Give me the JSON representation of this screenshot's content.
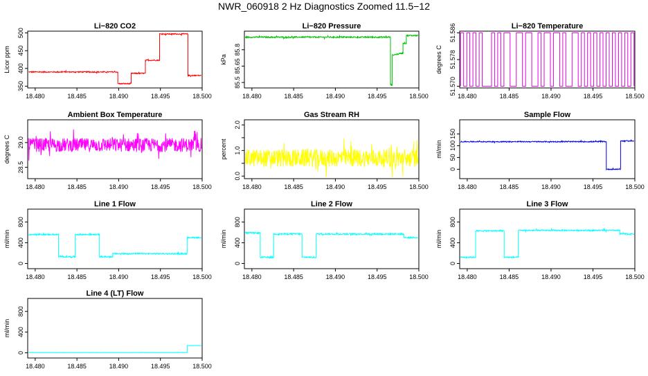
{
  "title": "NWR_060918  2 Hz Diagnostics Zoomed 11.5−12",
  "chart_data": [
    {
      "id": "p1",
      "type": "line",
      "title": "Li−820 CO2",
      "ylabel": "Licor ppm",
      "color": "#ff0000",
      "xlim": [
        18.4791,
        18.5
      ],
      "ylim": [
        345,
        505
      ],
      "xticks": [
        18.48,
        18.485,
        18.49,
        18.495,
        18.5
      ],
      "xtick_labels": [
        "18.480",
        "18.485",
        "18.490",
        "18.495",
        "18.500"
      ],
      "yticks": [
        350,
        400,
        450,
        500
      ],
      "ytick_labels": [
        "350",
        "400",
        "450",
        "500"
      ],
      "x": [
        18.4792,
        18.4899,
        18.4899,
        18.4915,
        18.4915,
        18.4932,
        18.4932,
        18.4949,
        18.4949,
        18.4983,
        18.4983,
        18.4999
      ],
      "y": [
        390,
        390,
        357,
        357,
        386,
        386,
        423,
        423,
        497,
        497,
        380,
        380
      ],
      "noise": 1.5
    },
    {
      "id": "p2",
      "type": "line",
      "title": "Li−820 Pressure",
      "ylabel": "kPa",
      "color": "#00c000",
      "xlim": [
        18.4791,
        18.5
      ],
      "ylim": [
        85.45,
        85.97
      ],
      "xticks": [
        18.48,
        18.485,
        18.49,
        18.495,
        18.5
      ],
      "xtick_labels": [
        "18.480",
        "18.485",
        "18.490",
        "18.495",
        "18.500"
      ],
      "yticks": [
        85.5,
        85.65,
        85.8
      ],
      "ytick_labels": [
        "85.5",
        "85.65",
        "85.8"
      ],
      "x": [
        18.4792,
        18.4966,
        18.4966,
        18.4968,
        18.4968,
        18.4981,
        18.4981,
        18.4985,
        18.4985,
        18.4999
      ],
      "y": [
        85.915,
        85.915,
        85.48,
        85.48,
        85.75,
        85.77,
        85.86,
        85.86,
        85.93,
        85.93
      ],
      "noise": 0.006
    },
    {
      "id": "p3",
      "type": "line",
      "title": "Li−820 Temperature",
      "ylabel": "degrees C",
      "color": "#e000e0",
      "xlim": [
        18.4791,
        18.5
      ],
      "ylim": [
        51.5695,
        51.5865
      ],
      "xticks": [
        18.48,
        18.485,
        18.49,
        18.495,
        18.5
      ],
      "xtick_labels": [
        "18.480",
        "18.485",
        "18.490",
        "18.495",
        "18.500"
      ],
      "yticks": [
        51.57,
        51.578,
        51.586
      ],
      "ytick_labels": [
        "51.570",
        "51.578",
        "51.586"
      ],
      "x": [
        18.4792,
        18.4999
      ],
      "y": [
        51.57,
        51.586
      ],
      "pattern": "binary"
    },
    {
      "id": "p4",
      "type": "line",
      "title": "Ambient Box Temperature",
      "ylabel": "degrees C",
      "color": "#ff00ff",
      "xlim": [
        18.4791,
        18.5
      ],
      "ylim": [
        28.27,
        29.46
      ],
      "xticks": [
        18.48,
        18.485,
        18.49,
        18.495,
        18.5
      ],
      "xtick_labels": [
        "18.480",
        "18.485",
        "18.490",
        "18.495",
        "18.500"
      ],
      "yticks": [
        28.5,
        29.0
      ],
      "ytick_labels": [
        "28.5",
        "29.0"
      ],
      "x": [
        18.4792,
        18.4999
      ],
      "y": [
        28.95,
        28.95
      ],
      "noise": 0.14
    },
    {
      "id": "p5",
      "type": "line",
      "title": "Gas Stream RH",
      "ylabel": "percent",
      "color": "#ffff00",
      "xlim": [
        18.4791,
        18.5
      ],
      "ylim": [
        -0.1,
        2.2
      ],
      "xticks": [
        18.48,
        18.485,
        18.49,
        18.495,
        18.5
      ],
      "xtick_labels": [
        "18.480",
        "18.485",
        "18.490",
        "18.495",
        "18.500"
      ],
      "yticks": [
        0.0,
        0.5,
        1.0,
        1.5,
        2.0
      ],
      "ytick_labels": [
        "0.0",
        "",
        "1.0",
        "",
        "2.0"
      ],
      "x": [
        18.4792,
        18.4999
      ],
      "y": [
        0.7,
        0.7
      ],
      "noise": 0.35
    },
    {
      "id": "p6",
      "type": "line",
      "title": "Sample Flow",
      "ylabel": "ml/min",
      "color": "#0000e0",
      "xlim": [
        18.4791,
        18.5
      ],
      "ylim": [
        -40,
        210
      ],
      "xticks": [
        18.48,
        18.485,
        18.49,
        18.495,
        18.5
      ],
      "xtick_labels": [
        "18.480",
        "18.485",
        "18.490",
        "18.495",
        "18.500"
      ],
      "yticks": [
        0,
        50,
        100,
        150
      ],
      "ytick_labels": [
        "0",
        "50",
        "100",
        "150"
      ],
      "x": [
        18.4792,
        18.4966,
        18.4966,
        18.4983,
        18.4983,
        18.4999
      ],
      "y": [
        117,
        117,
        0,
        0,
        120,
        120
      ],
      "noise": 2
    },
    {
      "id": "p7",
      "type": "line",
      "title": "Line 1 Flow",
      "ylabel": "ml/min",
      "color": "#00ffff",
      "xlim": [
        18.4791,
        18.5
      ],
      "ylim": [
        -100,
        1050
      ],
      "xticks": [
        18.48,
        18.485,
        18.49,
        18.495,
        18.5
      ],
      "xtick_labels": [
        "18.480",
        "18.485",
        "18.490",
        "18.495",
        "18.500"
      ],
      "yticks": [
        0,
        400,
        800
      ],
      "ytick_labels": [
        "0",
        "400",
        "800"
      ],
      "x": [
        18.4792,
        18.4828,
        18.4828,
        18.4848,
        18.4848,
        18.4877,
        18.4877,
        18.4893,
        18.4893,
        18.4982,
        18.4982,
        18.4999
      ],
      "y": [
        560,
        560,
        130,
        130,
        560,
        560,
        130,
        130,
        190,
        190,
        500,
        500
      ],
      "noise": 12
    },
    {
      "id": "p8",
      "type": "line",
      "title": "Line 2 Flow",
      "ylabel": "ml/min",
      "color": "#00ffff",
      "xlim": [
        18.4791,
        18.5
      ],
      "ylim": [
        -100,
        1050
      ],
      "xticks": [
        18.48,
        18.485,
        18.49,
        18.495,
        18.5
      ],
      "xtick_labels": [
        "18.480",
        "18.485",
        "18.490",
        "18.495",
        "18.500"
      ],
      "yticks": [
        0,
        400,
        800
      ],
      "ytick_labels": [
        "0",
        "400",
        "800"
      ],
      "x": [
        18.4792,
        18.481,
        18.481,
        18.4826,
        18.4826,
        18.486,
        18.486,
        18.4877,
        18.4877,
        18.4982,
        18.4982,
        18.4999
      ],
      "y": [
        590,
        590,
        120,
        120,
        570,
        570,
        120,
        120,
        570,
        570,
        500,
        500
      ],
      "noise": 14
    },
    {
      "id": "p9",
      "type": "line",
      "title": "Line 3 Flow",
      "ylabel": "ml/min",
      "color": "#00ffff",
      "xlim": [
        18.4791,
        18.5
      ],
      "ylim": [
        -100,
        1050
      ],
      "xticks": [
        18.48,
        18.485,
        18.49,
        18.495,
        18.5
      ],
      "xtick_labels": [
        "18.480",
        "18.485",
        "18.490",
        "18.495",
        "18.500"
      ],
      "yticks": [
        0,
        400,
        800
      ],
      "ytick_labels": [
        "0",
        "400",
        "800"
      ],
      "x": [
        18.4792,
        18.481,
        18.481,
        18.4844,
        18.4844,
        18.4861,
        18.4861,
        18.4982,
        18.4982,
        18.4999
      ],
      "y": [
        120,
        120,
        630,
        630,
        120,
        120,
        640,
        640,
        570,
        570
      ],
      "noise": 12
    },
    {
      "id": "p10",
      "type": "line",
      "title": "Line 4 (LT) Flow",
      "ylabel": "ml/min",
      "color": "#00ffff",
      "xlim": [
        18.4791,
        18.5
      ],
      "ylim": [
        -100,
        1050
      ],
      "xticks": [
        18.48,
        18.485,
        18.49,
        18.495,
        18.5
      ],
      "xtick_labels": [
        "18.480",
        "18.485",
        "18.490",
        "18.495",
        "18.500"
      ],
      "yticks": [
        0,
        400,
        800
      ],
      "ytick_labels": [
        "0",
        "400",
        "800"
      ],
      "x": [
        18.4792,
        18.4982,
        18.4982,
        18.4999
      ],
      "y": [
        5,
        5,
        140,
        140
      ],
      "noise": 2
    }
  ]
}
